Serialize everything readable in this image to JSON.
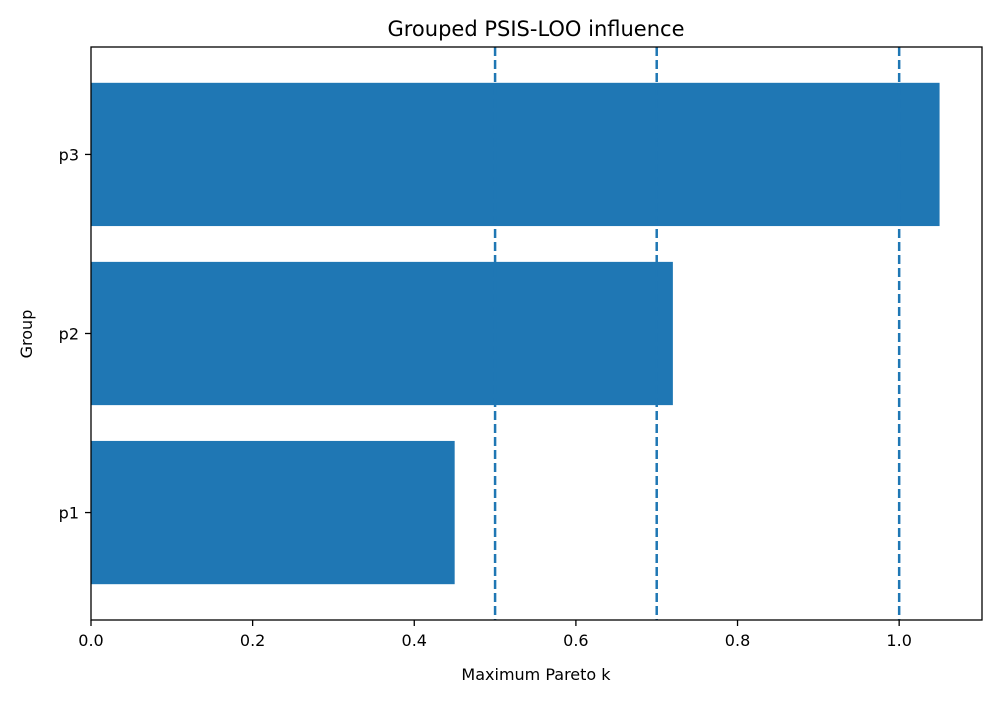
{
  "chart_data": {
    "type": "bar",
    "orientation": "horizontal",
    "title": "Grouped PSIS-LOO influence",
    "xlabel": "Maximum Pareto k",
    "ylabel": "Group",
    "categories": [
      "p1",
      "p2",
      "p3"
    ],
    "values": [
      0.45,
      0.72,
      1.05
    ],
    "xlim": [
      0.0,
      1.1025
    ],
    "xticks": [
      0.0,
      0.2,
      0.4,
      0.6,
      0.8,
      1.0
    ],
    "xtick_labels": [
      "0.0",
      "0.2",
      "0.4",
      "0.6",
      "0.8",
      "1.0"
    ],
    "reference_lines": [
      0.5,
      0.7,
      1.0
    ],
    "reference_line_style": "dashed",
    "grid": false,
    "legend": "none",
    "colors": {
      "bar": "#1f77b4",
      "reference_line": "#1f77b4",
      "axes": "#000000"
    }
  }
}
